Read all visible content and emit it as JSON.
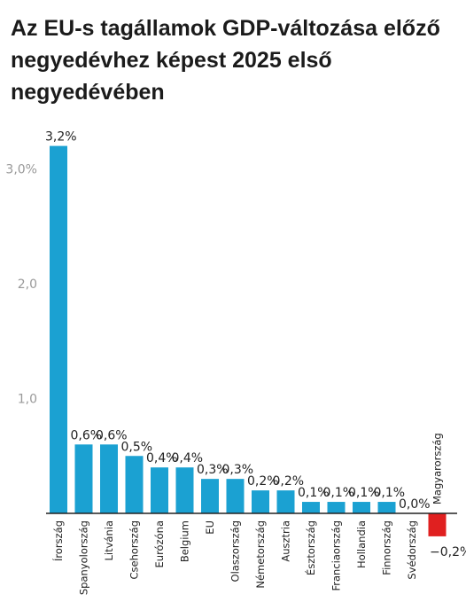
{
  "chart_data": {
    "type": "bar",
    "title": "Az EU-s tagállamok GDP-változása előző negyedévhez képest 2025 első negyedévében",
    "xlabel": "",
    "ylabel": "",
    "ylim": [
      -0.4,
      3.2
    ],
    "yticks": [
      {
        "value": 1.0,
        "label": "1,0"
      },
      {
        "value": 2.0,
        "label": "2,0"
      },
      {
        "value": 3.0,
        "label": "3,0%"
      }
    ],
    "grid": false,
    "legend": "none",
    "colors": {
      "positive": "#1ba1d2",
      "negative": "#e02020",
      "axis": "#222222"
    },
    "categories": [
      "Írország",
      "Spanyolország",
      "Litvánia",
      "Csehország",
      "Eurózóna",
      "Belgium",
      "EU",
      "Olaszország",
      "Németország",
      "Ausztria",
      "Észtország",
      "Franciaország",
      "Hollandia",
      "Finnország",
      "Svédország",
      "Magyarország"
    ],
    "values": [
      3.2,
      0.6,
      0.6,
      0.5,
      0.4,
      0.4,
      0.3,
      0.3,
      0.2,
      0.2,
      0.1,
      0.1,
      0.1,
      0.1,
      0.0,
      -0.2
    ],
    "value_labels": [
      "3,2%",
      "0,6%",
      "0,6%",
      "0,5%",
      "0,4%",
      "0,4%",
      "0,3%",
      "0,3%",
      "0,2%",
      "0,2%",
      "0,1%",
      "0,1%",
      "0,1%",
      "0,1%",
      "0,0%",
      "−0,2%"
    ]
  }
}
